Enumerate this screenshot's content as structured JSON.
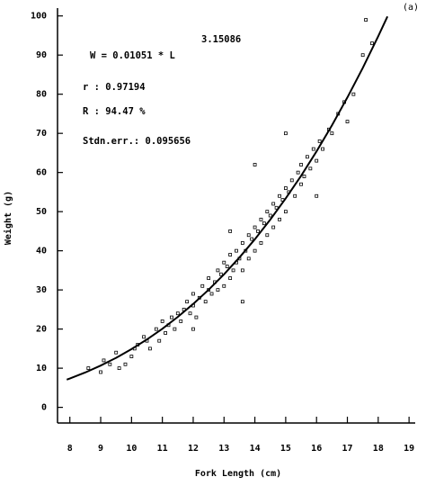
{
  "chart_data": {
    "type": "scatter",
    "panel_label": "(a)",
    "x_label": "Fork Length (cm)",
    "y_label": "Weight (g)",
    "annotations": {
      "equation": "W = 0.01051 * L",
      "exponent": "3.15086",
      "r": "r : 0.97194",
      "R": "R : 94.47 %",
      "stderr": "Stdn.err.: 0.095656"
    },
    "xlim": [
      7.6,
      19.2
    ],
    "ylim": [
      -4,
      102
    ],
    "xticks": [
      8,
      9,
      10,
      11,
      12,
      13,
      14,
      15,
      16,
      17,
      18,
      19
    ],
    "yticks": [
      0,
      10,
      20,
      30,
      40,
      50,
      60,
      70,
      80,
      90,
      100
    ],
    "color": "#000000",
    "points": [
      [
        8.6,
        10
      ],
      [
        9.0,
        9
      ],
      [
        9.1,
        12
      ],
      [
        9.3,
        11
      ],
      [
        9.5,
        14
      ],
      [
        9.6,
        10
      ],
      [
        9.8,
        11
      ],
      [
        10.0,
        13
      ],
      [
        10.1,
        15
      ],
      [
        10.2,
        16
      ],
      [
        10.4,
        18
      ],
      [
        10.5,
        17
      ],
      [
        10.6,
        15
      ],
      [
        10.8,
        20
      ],
      [
        10.9,
        17
      ],
      [
        11.0,
        22
      ],
      [
        11.1,
        19
      ],
      [
        11.2,
        21
      ],
      [
        11.3,
        23
      ],
      [
        11.4,
        20
      ],
      [
        11.5,
        24
      ],
      [
        11.6,
        22
      ],
      [
        11.7,
        25
      ],
      [
        11.8,
        27
      ],
      [
        11.9,
        24
      ],
      [
        12.0,
        26
      ],
      [
        12.0,
        29
      ],
      [
        12.1,
        23
      ],
      [
        12.2,
        28
      ],
      [
        12.3,
        31
      ],
      [
        12.4,
        27
      ],
      [
        12.5,
        30
      ],
      [
        12.5,
        33
      ],
      [
        12.6,
        29
      ],
      [
        12.7,
        32
      ],
      [
        12.8,
        35
      ],
      [
        12.8,
        30
      ],
      [
        12.9,
        34
      ],
      [
        13.0,
        37
      ],
      [
        13.0,
        31
      ],
      [
        13.1,
        36
      ],
      [
        13.2,
        33
      ],
      [
        13.2,
        39
      ],
      [
        13.3,
        35
      ],
      [
        13.4,
        40
      ],
      [
        13.4,
        37
      ],
      [
        13.5,
        38
      ],
      [
        13.6,
        42
      ],
      [
        13.6,
        35
      ],
      [
        13.7,
        40
      ],
      [
        13.8,
        44
      ],
      [
        13.8,
        38
      ],
      [
        13.9,
        43
      ],
      [
        14.0,
        46
      ],
      [
        14.0,
        40
      ],
      [
        14.1,
        45
      ],
      [
        14.2,
        48
      ],
      [
        14.2,
        42
      ],
      [
        14.3,
        47
      ],
      [
        14.4,
        50
      ],
      [
        14.4,
        44
      ],
      [
        14.5,
        49
      ],
      [
        14.6,
        52
      ],
      [
        14.6,
        46
      ],
      [
        14.7,
        51
      ],
      [
        14.8,
        54
      ],
      [
        14.8,
        48
      ],
      [
        14.9,
        53
      ],
      [
        15.0,
        56
      ],
      [
        15.0,
        50
      ],
      [
        15.1,
        55
      ],
      [
        15.2,
        58
      ],
      [
        15.3,
        54
      ],
      [
        15.4,
        60
      ],
      [
        15.5,
        57
      ],
      [
        15.5,
        62
      ],
      [
        15.6,
        59
      ],
      [
        15.7,
        64
      ],
      [
        15.8,
        61
      ],
      [
        15.9,
        66
      ],
      [
        16.0,
        63
      ],
      [
        16.1,
        68
      ],
      [
        16.2,
        66
      ],
      [
        16.4,
        71
      ],
      [
        16.5,
        70
      ],
      [
        16.7,
        75
      ],
      [
        16.9,
        78
      ],
      [
        17.0,
        73
      ],
      [
        17.2,
        80
      ],
      [
        17.5,
        90
      ],
      [
        17.6,
        99
      ],
      [
        17.8,
        93
      ],
      [
        14.0,
        62
      ],
      [
        15.0,
        70
      ],
      [
        13.2,
        45
      ],
      [
        12.0,
        20
      ],
      [
        16.0,
        54
      ],
      [
        13.6,
        27
      ]
    ],
    "fit": {
      "x": [
        7.9,
        8,
        8.5,
        9,
        9.5,
        10,
        10.5,
        11,
        11.5,
        12,
        12.5,
        13,
        13.5,
        14,
        14.5,
        15,
        15.5,
        16,
        16.5,
        17,
        17.5,
        18,
        18.3
      ],
      "y": [
        7.08,
        7.36,
        8.91,
        10.67,
        12.65,
        14.88,
        17.35,
        20.08,
        23.1,
        26.42,
        30.04,
        33.99,
        38.3,
        42.95,
        47.96,
        53.38,
        59.17,
        65.4,
        72.06,
        79.17,
        86.73,
        94.8,
        99.86
      ]
    }
  }
}
